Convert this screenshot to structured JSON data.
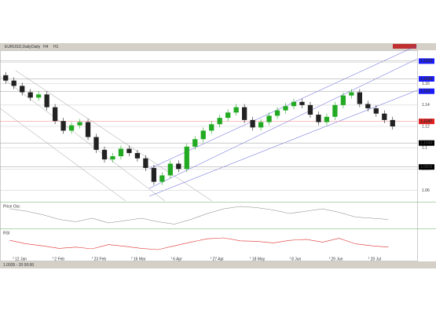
{
  "window": {
    "title": "EURUSD,Daily",
    "toolbar": [
      "Daily",
      "H4",
      "H1"
    ],
    "status": "1.0935 - 20 00:00"
  },
  "chart_data": {
    "type": "candlestick",
    "open": [
      1.168,
      1.163,
      1.158,
      1.152,
      1.147,
      1.15,
      1.138,
      1.125,
      1.116,
      1.121,
      1.124,
      1.11,
      1.098,
      1.089,
      1.092,
      1.099,
      1.095,
      1.09,
      1.081,
      1.068,
      1.074,
      1.085,
      1.08,
      1.101,
      1.108,
      1.116,
      1.122,
      1.128,
      1.133,
      1.138,
      1.126,
      1.119,
      1.124,
      1.13,
      1.135,
      1.139,
      1.143,
      1.14,
      1.131,
      1.124,
      1.129,
      1.14,
      1.149,
      1.152,
      1.141,
      1.137,
      1.132,
      1.126
    ],
    "high": [
      1.171,
      1.166,
      1.161,
      1.155,
      1.153,
      1.153,
      1.141,
      1.128,
      1.124,
      1.127,
      1.127,
      1.113,
      1.101,
      1.095,
      1.102,
      1.102,
      1.098,
      1.093,
      1.084,
      1.077,
      1.088,
      1.088,
      1.104,
      1.111,
      1.119,
      1.125,
      1.131,
      1.136,
      1.141,
      1.141,
      1.129,
      1.127,
      1.133,
      1.138,
      1.142,
      1.146,
      1.146,
      1.143,
      1.134,
      1.132,
      1.143,
      1.152,
      1.155,
      1.155,
      1.144,
      1.14,
      1.135,
      1.129
    ],
    "low": [
      1.16,
      1.155,
      1.149,
      1.144,
      1.144,
      1.135,
      1.122,
      1.113,
      1.113,
      1.118,
      1.107,
      1.095,
      1.086,
      1.086,
      1.089,
      1.092,
      1.087,
      1.078,
      1.065,
      1.065,
      1.071,
      1.077,
      1.077,
      1.098,
      1.105,
      1.113,
      1.119,
      1.125,
      1.13,
      1.123,
      1.116,
      1.116,
      1.121,
      1.127,
      1.132,
      1.136,
      1.137,
      1.128,
      1.121,
      1.121,
      1.126,
      1.137,
      1.146,
      1.138,
      1.134,
      1.129,
      1.123,
      1.117
    ],
    "close": [
      1.163,
      1.158,
      1.152,
      1.147,
      1.15,
      1.138,
      1.125,
      1.116,
      1.121,
      1.124,
      1.11,
      1.098,
      1.089,
      1.092,
      1.099,
      1.095,
      1.09,
      1.081,
      1.068,
      1.074,
      1.085,
      1.08,
      1.101,
      1.108,
      1.116,
      1.122,
      1.128,
      1.133,
      1.138,
      1.126,
      1.119,
      1.124,
      1.13,
      1.135,
      1.139,
      1.143,
      1.14,
      1.131,
      1.124,
      1.129,
      1.14,
      1.149,
      1.152,
      1.141,
      1.137,
      1.132,
      1.126,
      1.12
    ],
    "up_color": "#22aa22",
    "down_color": "#222222",
    "ylim": [
      1.05,
      1.19
    ],
    "yticks": [
      1.18,
      1.16,
      1.14,
      1.12,
      1.1,
      1.08,
      1.06
    ],
    "price_labels": [
      1.1813,
      1.1646,
      1.153,
      1.1247,
      1.1044,
      1.0819
    ],
    "price_label_colors": [
      "#1a1aff",
      "#1a1aff",
      "#1a1aff",
      "#e02020",
      "#000000",
      "#000000"
    ],
    "x_labels": [
      "12 Jan",
      "2 Feb",
      "23 Feb",
      "16 Mar",
      "6 Apr",
      "27 Apr",
      "18 May",
      "8 Jun",
      "29 Jun",
      "20 Jul"
    ],
    "oscillator": {
      "name": "Price Osc",
      "color": "#888888",
      "ylim": [
        -1,
        1
      ],
      "values": [
        0.6,
        0.4,
        0.1,
        -0.3,
        -0.5,
        -0.2,
        -0.6,
        -0.4,
        -0.2,
        -0.5,
        -0.7,
        -0.3,
        0.2,
        0.6,
        0.8,
        0.7,
        0.5,
        0.2,
        0.4,
        0.6,
        0.3,
        -0.1,
        -0.2,
        -0.3
      ]
    },
    "rsi": {
      "name": "RSI",
      "color": "#e03030",
      "ylim": [
        0,
        100
      ],
      "values": [
        62,
        48,
        40,
        30,
        35,
        28,
        45,
        38,
        30,
        25,
        40,
        55,
        68,
        72,
        60,
        58,
        52,
        62,
        66,
        55,
        70,
        48,
        40,
        35
      ]
    }
  }
}
